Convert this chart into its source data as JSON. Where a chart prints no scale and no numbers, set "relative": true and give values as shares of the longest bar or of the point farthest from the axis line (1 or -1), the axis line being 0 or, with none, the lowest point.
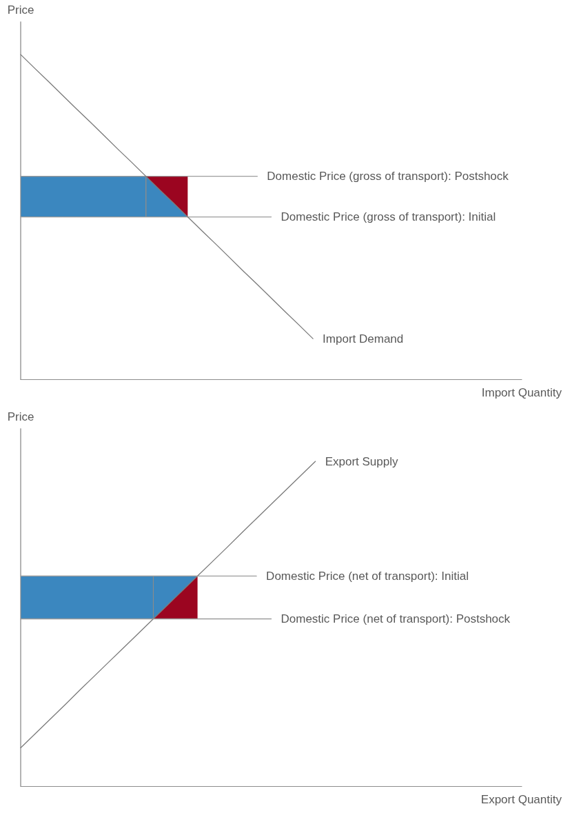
{
  "chart_data": [
    {
      "type": "line",
      "relative": true,
      "marker": "none",
      "xlabel": "Import Quantity",
      "ylabel": "Price",
      "categories": [
        null,
        null,
        null,
        null,
        null,
        null,
        null,
        null,
        null,
        null,
        null,
        null,
        null,
        null,
        null,
        null,
        null,
        null,
        null,
        null,
        null,
        null,
        null,
        null,
        null,
        null,
        null,
        null,
        null,
        null,
        null,
        null,
        null,
        null,
        null,
        null,
        null
      ],
      "series": [
        {
          "name": "Domestic Price (gross of transport): Postshock",
          "color": "#9c9c9c",
          "values": [
            0.625,
            0.625,
            0.625,
            0.625,
            0.625,
            0.625,
            0.625,
            0.625,
            0.625,
            0.625,
            0.625,
            0.625,
            0.625,
            0.625,
            0.625,
            0.625,
            0.625,
            0.625,
            null,
            null,
            null,
            null,
            null,
            null,
            null,
            null,
            null,
            null,
            null,
            null,
            null,
            null,
            null,
            null,
            null,
            null,
            null
          ]
        },
        {
          "name": "Domestic Price (gross of transport): Initial",
          "color": "#9c9c9c",
          "values": [
            0.5,
            0.5,
            0.5,
            0.5,
            0.5,
            0.5,
            0.5,
            0.5,
            0.5,
            0.5,
            0.5,
            0.5,
            0.5,
            0.5,
            0.5,
            0.5,
            0.5,
            0.5,
            0.5,
            null,
            null,
            null,
            null,
            null,
            null,
            null,
            null,
            null,
            null,
            null,
            null,
            null,
            null,
            null,
            null,
            null,
            null
          ]
        },
        {
          "name": "Import Demand",
          "color": "#7a7a7a",
          "values": [
            1,
            0.958,
            0.917,
            0.875,
            0.833,
            0.792,
            0.75,
            0.708,
            0.667,
            0.625,
            0.583,
            0.542,
            0.5,
            0.458,
            0.417,
            0.375,
            0.333,
            0.292,
            0.25,
            0.208,
            0.167,
            0.125,
            null,
            null,
            null,
            null,
            null,
            null,
            null,
            null,
            null,
            null,
            null,
            null,
            null,
            null,
            null
          ]
        },
        {
          "type": "area",
          "color": "#3b87bf",
          "values": [
            null,
            null,
            null,
            null,
            null,
            null,
            null,
            null,
            null,
            null,
            null,
            null,
            null,
            null,
            null,
            null,
            null,
            null,
            null,
            null,
            null,
            null,
            null,
            null,
            null,
            null,
            null,
            null,
            null,
            null,
            null,
            null,
            null,
            null,
            null,
            null,
            null
          ],
          "upper": [
            0.625,
            0.625,
            0.625,
            0.625,
            0.625,
            0.625,
            0.625,
            0.625,
            0.625,
            0.625,
            0.583,
            0.542,
            0.5,
            null,
            null,
            null,
            null,
            null,
            null,
            null,
            null,
            null,
            null,
            null,
            null,
            null,
            null,
            null,
            null,
            null,
            null,
            null,
            null,
            null,
            null,
            null,
            null
          ],
          "lower": [
            0.5,
            0.5,
            0.5,
            0.5,
            0.5,
            0.5,
            0.5,
            0.5,
            0.5,
            0.5,
            0.5,
            0.5,
            0.5,
            null,
            null,
            null,
            null,
            null,
            null,
            null,
            null,
            null,
            null,
            null,
            null,
            null,
            null,
            null,
            null,
            null,
            null,
            null,
            null,
            null,
            null,
            null,
            null
          ]
        },
        {
          "type": "area",
          "color": "#9b0520",
          "values": [
            null,
            null,
            null,
            null,
            null,
            null,
            null,
            null,
            null,
            null,
            null,
            null,
            null,
            null,
            null,
            null,
            null,
            null,
            null,
            null,
            null,
            null,
            null,
            null,
            null,
            null,
            null,
            null,
            null,
            null,
            null,
            null,
            null,
            null,
            null,
            null,
            null
          ],
          "upper": [
            null,
            null,
            null,
            null,
            null,
            null,
            null,
            null,
            null,
            0.625,
            0.625,
            0.625,
            0.625,
            null,
            null,
            null,
            null,
            null,
            null,
            null,
            null,
            null,
            null,
            null,
            null,
            null,
            null,
            null,
            null,
            null,
            null,
            null,
            null,
            null,
            null,
            null,
            null
          ],
          "lower": [
            null,
            null,
            null,
            null,
            null,
            null,
            null,
            null,
            null,
            0.625,
            0.583,
            0.542,
            0.5,
            null,
            null,
            null,
            null,
            null,
            null,
            null,
            null,
            null,
            null,
            null,
            null,
            null,
            null,
            null,
            null,
            null,
            null,
            null,
            null,
            null,
            null,
            null,
            null
          ]
        }
      ]
    },
    {
      "type": "line",
      "relative": true,
      "marker": "none",
      "xlabel": "Export Quantity",
      "ylabel": "Price",
      "categories": [
        null,
        null,
        null,
        null,
        null,
        null,
        null,
        null,
        null,
        null,
        null,
        null,
        null,
        null,
        null,
        null,
        null,
        null,
        null,
        null,
        null,
        null,
        null,
        null,
        null,
        null,
        null,
        null,
        null,
        null,
        null,
        null,
        null,
        null,
        null
      ],
      "series": [
        {
          "name": "Export Supply",
          "color": "#7a7a7a",
          "values": [
            0.118,
            0.162,
            0.206,
            0.25,
            0.295,
            0.339,
            0.383,
            0.427,
            0.471,
            0.515,
            0.559,
            0.603,
            0.647,
            0.691,
            0.735,
            0.78,
            0.824,
            0.868,
            0.912,
            0.956,
            1,
            null,
            null,
            null,
            null,
            null,
            null,
            null,
            null,
            null,
            null,
            null,
            null,
            null,
            null
          ]
        },
        {
          "name": "Domestic Price (net of transport): Initial",
          "color": "#9c9c9c",
          "values": [
            0.647,
            0.647,
            0.647,
            0.647,
            0.647,
            0.647,
            0.647,
            0.647,
            0.647,
            0.647,
            0.647,
            0.647,
            0.647,
            0.647,
            0.647,
            0.647,
            0.647,
            null,
            null,
            null,
            null,
            null,
            null,
            null,
            null,
            null,
            null,
            null,
            null,
            null,
            null,
            null,
            null,
            null,
            null
          ]
        },
        {
          "name": "Domestic Price (net of transport): Postshock",
          "color": "#9c9c9c",
          "values": [
            0.515,
            0.515,
            0.515,
            0.515,
            0.515,
            0.515,
            0.515,
            0.515,
            0.515,
            0.515,
            0.515,
            0.515,
            0.515,
            0.515,
            0.515,
            0.515,
            0.515,
            0.515,
            null,
            null,
            null,
            null,
            null,
            null,
            null,
            null,
            null,
            null,
            null,
            null,
            null,
            null,
            null,
            null,
            null
          ]
        },
        {
          "type": "area",
          "color": "#3b87bf",
          "values": [
            null,
            null,
            null,
            null,
            null,
            null,
            null,
            null,
            null,
            null,
            null,
            null,
            null,
            null,
            null,
            null,
            null,
            null,
            null,
            null,
            null,
            null,
            null,
            null,
            null,
            null,
            null,
            null,
            null,
            null,
            null,
            null,
            null,
            null,
            null
          ],
          "upper": [
            0.647,
            0.647,
            0.647,
            0.647,
            0.647,
            0.647,
            0.647,
            0.647,
            0.647,
            0.647,
            0.647,
            0.647,
            0.647,
            null,
            null,
            null,
            null,
            null,
            null,
            null,
            null,
            null,
            null,
            null,
            null,
            null,
            null,
            null,
            null,
            null,
            null,
            null,
            null,
            null,
            null
          ],
          "lower": [
            0.515,
            0.515,
            0.515,
            0.515,
            0.515,
            0.515,
            0.515,
            0.515,
            0.515,
            0.515,
            0.559,
            0.603,
            0.647,
            null,
            null,
            null,
            null,
            null,
            null,
            null,
            null,
            null,
            null,
            null,
            null,
            null,
            null,
            null,
            null,
            null,
            null,
            null,
            null,
            null,
            null
          ]
        },
        {
          "type": "area",
          "color": "#9b0520",
          "values": [
            null,
            null,
            null,
            null,
            null,
            null,
            null,
            null,
            null,
            null,
            null,
            null,
            null,
            null,
            null,
            null,
            null,
            null,
            null,
            null,
            null,
            null,
            null,
            null,
            null,
            null,
            null,
            null,
            null,
            null,
            null,
            null,
            null,
            null,
            null
          ],
          "upper": [
            null,
            null,
            null,
            null,
            null,
            null,
            null,
            null,
            null,
            0.515,
            0.559,
            0.603,
            0.647,
            null,
            null,
            null,
            null,
            null,
            null,
            null,
            null,
            null,
            null,
            null,
            null,
            null,
            null,
            null,
            null,
            null,
            null,
            null,
            null,
            null,
            null
          ],
          "lower": [
            null,
            null,
            null,
            null,
            null,
            null,
            null,
            null,
            null,
            0.515,
            0.515,
            0.515,
            0.515,
            null,
            null,
            null,
            null,
            null,
            null,
            null,
            null,
            null,
            null,
            null,
            null,
            null,
            null,
            null,
            null,
            null,
            null,
            null,
            null,
            null,
            null
          ]
        }
      ]
    }
  ]
}
